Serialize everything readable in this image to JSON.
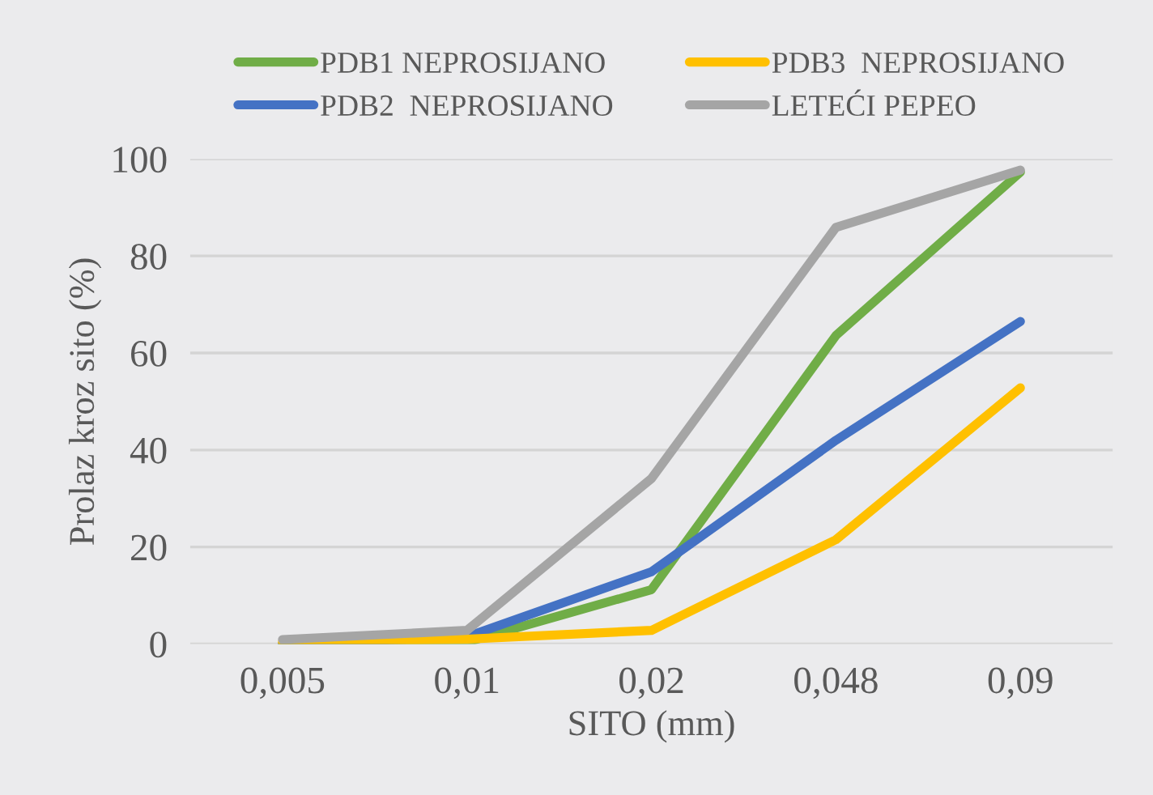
{
  "chart_data": {
    "type": "line",
    "xlabel": "SITO (mm)",
    "ylabel": "Prolaz kroz sito (%)",
    "categories": [
      "0,005",
      "0,01",
      "0,02",
      "0,048",
      "0,09"
    ],
    "series": [
      {
        "name": "PDB1 NEPROSIJANO",
        "color": "#70ad47",
        "values": [
          0,
          0.4,
          11.2,
          63.6,
          97.3
        ]
      },
      {
        "name": "PDB2  NEPROSIJANO",
        "color": "#4472c4",
        "values": [
          0,
          1.5,
          14.9,
          42,
          66.5
        ]
      },
      {
        "name": "PDB3  NEPROSIJANO",
        "color": "#ffc000",
        "values": [
          0.4,
          1,
          2.8,
          21.5,
          52.8
        ]
      },
      {
        "name": "LETEĆI PEPEO",
        "color": "#a5a5a5",
        "values": [
          0.9,
          2.8,
          34.1,
          85.9,
          97.7
        ]
      }
    ],
    "ylim": [
      0,
      100
    ],
    "yticks": [
      0,
      20,
      40,
      60,
      80,
      100
    ],
    "grid": "y",
    "legend": "top",
    "marker": "none",
    "line_style": "solid"
  }
}
